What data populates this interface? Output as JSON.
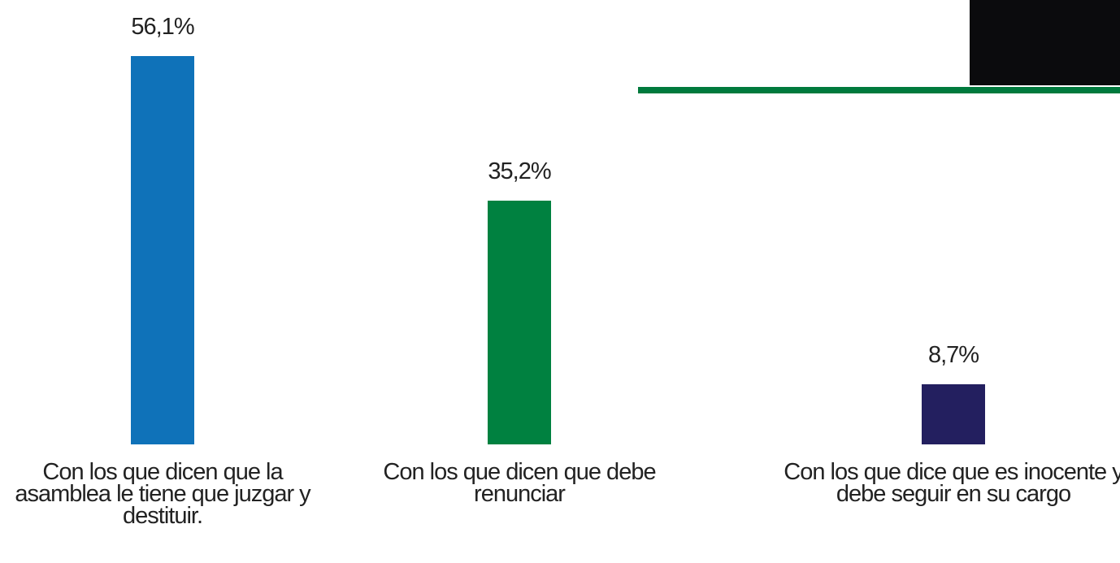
{
  "chart_data": {
    "type": "bar",
    "categories": [
      "Con los que dicen que la asamblea le tiene que juzgar y destituir.",
      "Con los que dicen que debe renunciar",
      "Con los que dice que es inocente y debe seguir en su cargo"
    ],
    "values": [
      56.1,
      35.2,
      8.7
    ],
    "value_labels": [
      "56,1%",
      "35,2%",
      "8,7%"
    ],
    "colors": [
      "#0f72b9",
      "#008140",
      "#231f5f"
    ]
  }
}
